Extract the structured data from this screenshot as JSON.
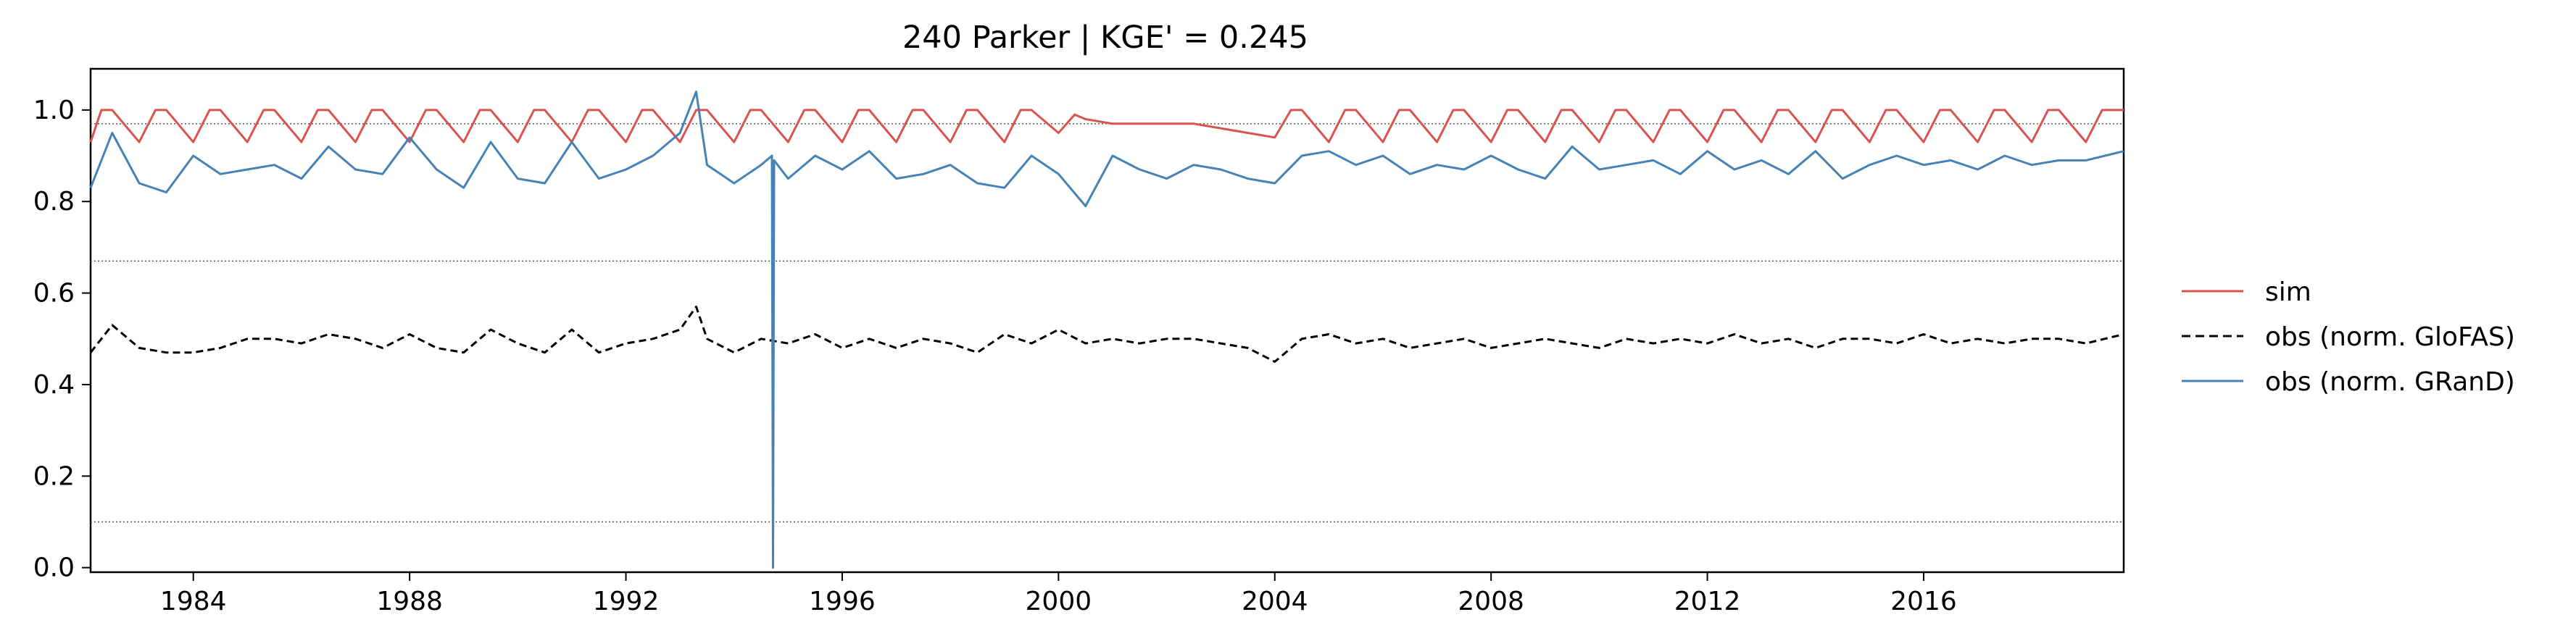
{
  "chart_data": {
    "type": "line",
    "title": "240  Parker | KGE' = 0.245",
    "xlabel": "",
    "ylabel": "",
    "xlim": [
      1982.1,
      2019.7
    ],
    "ylim": [
      -0.01,
      1.09
    ],
    "x_ticks": [
      1984,
      1988,
      1992,
      1996,
      2000,
      2004,
      2008,
      2012,
      2016
    ],
    "y_ticks": [
      0.0,
      0.2,
      0.4,
      0.6,
      0.8,
      1.0
    ],
    "x_tick_labels": [
      "1984",
      "1988",
      "1992",
      "1996",
      "2000",
      "2004",
      "2008",
      "2012",
      "2016"
    ],
    "y_tick_labels": [
      "0.0",
      "0.2",
      "0.4",
      "0.6",
      "0.8",
      "1.0"
    ],
    "reference_lines": [
      0.1,
      0.67,
      0.97
    ],
    "grid": false,
    "legend_position": "right",
    "series": [
      {
        "name": "sim",
        "color": "#d9534f",
        "style": "solid",
        "x": [
          1982.1,
          1982.3,
          1982.5,
          1983.0,
          1983.3,
          1983.5,
          1984.0,
          1984.3,
          1984.5,
          1985.0,
          1985.3,
          1985.5,
          1986.0,
          1986.3,
          1986.5,
          1987.0,
          1987.3,
          1987.5,
          1988.0,
          1988.3,
          1988.5,
          1989.0,
          1989.3,
          1989.5,
          1990.0,
          1990.3,
          1990.5,
          1991.0,
          1991.3,
          1991.5,
          1992.0,
          1992.3,
          1992.5,
          1993.0,
          1993.3,
          1993.5,
          1994.0,
          1994.3,
          1994.5,
          1995.0,
          1995.3,
          1995.5,
          1996.0,
          1996.3,
          1996.5,
          1997.0,
          1997.3,
          1997.5,
          1998.0,
          1998.3,
          1998.5,
          1999.0,
          1999.3,
          1999.5,
          2000.0,
          2000.3,
          2000.5,
          2001.0,
          2001.5,
          2002.0,
          2002.5,
          2003.0,
          2003.5,
          2004.0,
          2004.3,
          2004.5,
          2005.0,
          2005.3,
          2005.5,
          2006.0,
          2006.3,
          2006.5,
          2007.0,
          2007.3,
          2007.5,
          2008.0,
          2008.3,
          2008.5,
          2009.0,
          2009.3,
          2009.5,
          2010.0,
          2010.3,
          2010.5,
          2011.0,
          2011.3,
          2011.5,
          2012.0,
          2012.3,
          2012.5,
          2013.0,
          2013.3,
          2013.5,
          2014.0,
          2014.3,
          2014.5,
          2015.0,
          2015.3,
          2015.5,
          2016.0,
          2016.3,
          2016.5,
          2017.0,
          2017.3,
          2017.5,
          2018.0,
          2018.3,
          2018.5,
          2019.0,
          2019.3,
          2019.7
        ],
        "y": [
          0.93,
          1.0,
          1.0,
          0.93,
          1.0,
          1.0,
          0.93,
          1.0,
          1.0,
          0.93,
          1.0,
          1.0,
          0.93,
          1.0,
          1.0,
          0.93,
          1.0,
          1.0,
          0.93,
          1.0,
          1.0,
          0.93,
          1.0,
          1.0,
          0.93,
          1.0,
          1.0,
          0.93,
          1.0,
          1.0,
          0.93,
          1.0,
          1.0,
          0.93,
          1.0,
          1.0,
          0.93,
          1.0,
          1.0,
          0.93,
          1.0,
          1.0,
          0.93,
          1.0,
          1.0,
          0.93,
          1.0,
          1.0,
          0.93,
          1.0,
          1.0,
          0.93,
          1.0,
          1.0,
          0.95,
          0.99,
          0.98,
          0.97,
          0.97,
          0.97,
          0.97,
          0.96,
          0.95,
          0.94,
          1.0,
          1.0,
          0.93,
          1.0,
          1.0,
          0.93,
          1.0,
          1.0,
          0.93,
          1.0,
          1.0,
          0.93,
          1.0,
          1.0,
          0.93,
          1.0,
          1.0,
          0.93,
          1.0,
          1.0,
          0.93,
          1.0,
          1.0,
          0.93,
          1.0,
          1.0,
          0.93,
          1.0,
          1.0,
          0.93,
          1.0,
          1.0,
          0.93,
          1.0,
          1.0,
          0.93,
          1.0,
          1.0,
          0.93,
          1.0,
          1.0,
          0.93,
          1.0,
          1.0,
          0.93,
          1.0,
          1.0
        ]
      },
      {
        "name": "obs (norm. GloFAS)",
        "color": "#000000",
        "style": "dashed",
        "x": [
          1982.1,
          1982.5,
          1983.0,
          1983.5,
          1984.0,
          1984.5,
          1985.0,
          1985.5,
          1986.0,
          1986.5,
          1987.0,
          1987.5,
          1988.0,
          1988.5,
          1989.0,
          1989.5,
          1990.0,
          1990.5,
          1991.0,
          1991.5,
          1992.0,
          1992.5,
          1993.0,
          1993.3,
          1993.5,
          1994.0,
          1994.5,
          1995.0,
          1995.5,
          1996.0,
          1996.5,
          1997.0,
          1997.5,
          1998.0,
          1998.5,
          1999.0,
          1999.5,
          2000.0,
          2000.5,
          2001.0,
          2001.5,
          2002.0,
          2002.5,
          2003.0,
          2003.5,
          2004.0,
          2004.5,
          2005.0,
          2005.5,
          2006.0,
          2006.5,
          2007.0,
          2007.5,
          2008.0,
          2008.5,
          2009.0,
          2009.5,
          2010.0,
          2010.5,
          2011.0,
          2011.5,
          2012.0,
          2012.5,
          2013.0,
          2013.5,
          2014.0,
          2014.5,
          2015.0,
          2015.5,
          2016.0,
          2016.5,
          2017.0,
          2017.5,
          2018.0,
          2018.5,
          2019.0,
          2019.7
        ],
        "y": [
          0.47,
          0.53,
          0.48,
          0.47,
          0.47,
          0.48,
          0.5,
          0.5,
          0.49,
          0.51,
          0.5,
          0.48,
          0.51,
          0.48,
          0.47,
          0.52,
          0.49,
          0.47,
          0.52,
          0.47,
          0.49,
          0.5,
          0.52,
          0.57,
          0.5,
          0.47,
          0.5,
          0.49,
          0.51,
          0.48,
          0.5,
          0.48,
          0.5,
          0.49,
          0.47,
          0.51,
          0.49,
          0.52,
          0.49,
          0.5,
          0.49,
          0.5,
          0.5,
          0.49,
          0.48,
          0.45,
          0.5,
          0.51,
          0.49,
          0.5,
          0.48,
          0.49,
          0.5,
          0.48,
          0.49,
          0.5,
          0.49,
          0.48,
          0.5,
          0.49,
          0.5,
          0.49,
          0.51,
          0.49,
          0.5,
          0.48,
          0.5,
          0.5,
          0.49,
          0.51,
          0.49,
          0.5,
          0.49,
          0.5,
          0.5,
          0.49,
          0.51
        ]
      },
      {
        "name": "obs (norm. GRanD)",
        "color": "#4682b4",
        "style": "solid",
        "x": [
          1982.1,
          1982.5,
          1983.0,
          1983.5,
          1984.0,
          1984.5,
          1985.0,
          1985.5,
          1986.0,
          1986.5,
          1987.0,
          1987.5,
          1988.0,
          1988.5,
          1989.0,
          1989.5,
          1990.0,
          1990.5,
          1991.0,
          1991.5,
          1992.0,
          1992.5,
          1993.0,
          1993.3,
          1993.5,
          1994.0,
          1994.5,
          1994.7,
          1994.72,
          1994.74,
          1995.0,
          1995.5,
          1996.0,
          1996.5,
          1997.0,
          1997.5,
          1998.0,
          1998.5,
          1999.0,
          1999.5,
          2000.0,
          2000.5,
          2001.0,
          2001.5,
          2002.0,
          2002.5,
          2003.0,
          2003.5,
          2004.0,
          2004.5,
          2005.0,
          2005.5,
          2006.0,
          2006.5,
          2007.0,
          2007.5,
          2008.0,
          2008.5,
          2009.0,
          2009.5,
          2010.0,
          2010.5,
          2011.0,
          2011.5,
          2012.0,
          2012.5,
          2013.0,
          2013.5,
          2014.0,
          2014.5,
          2015.0,
          2015.5,
          2016.0,
          2016.5,
          2017.0,
          2017.5,
          2018.0,
          2018.5,
          2019.0,
          2019.7
        ],
        "y": [
          0.83,
          0.95,
          0.84,
          0.82,
          0.9,
          0.86,
          0.87,
          0.88,
          0.85,
          0.92,
          0.87,
          0.86,
          0.94,
          0.87,
          0.83,
          0.93,
          0.85,
          0.84,
          0.93,
          0.85,
          0.87,
          0.9,
          0.95,
          1.04,
          0.88,
          0.84,
          0.88,
          0.9,
          0.0,
          0.89,
          0.85,
          0.9,
          0.87,
          0.91,
          0.85,
          0.86,
          0.88,
          0.84,
          0.83,
          0.9,
          0.86,
          0.79,
          0.9,
          0.87,
          0.85,
          0.88,
          0.87,
          0.85,
          0.84,
          0.9,
          0.91,
          0.88,
          0.9,
          0.86,
          0.88,
          0.87,
          0.9,
          0.87,
          0.85,
          0.92,
          0.87,
          0.88,
          0.89,
          0.86,
          0.91,
          0.87,
          0.89,
          0.86,
          0.91,
          0.85,
          0.88,
          0.9,
          0.88,
          0.89,
          0.87,
          0.9,
          0.88,
          0.89,
          0.89,
          0.91
        ]
      }
    ]
  }
}
